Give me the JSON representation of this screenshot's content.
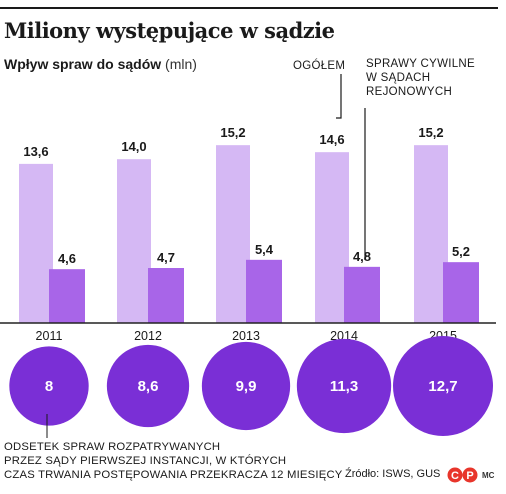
{
  "title": "Miliony występujące w sądzie",
  "subtitle": {
    "bold": "Wpływ spraw do sądów",
    "unit": "(mln)"
  },
  "legend": {
    "total": "OGÓŁEM",
    "civil": [
      "SPRAWY CYWILNE",
      "W SĄDACH",
      "REJONOWYCH"
    ]
  },
  "footnote": [
    "ODSETEK SPRAW ROZPATRYWANYCH",
    "PRZEZ SĄDY PIERWSZEJ INSTANCJI, W KTÓRYCH",
    "CZAS TRWANIA POSTĘPOWANIA PRZEKRACZA 12 MIESIĘCY"
  ],
  "source": "Źródło: ISWS, GUS",
  "logo_text": "MC",
  "colors": {
    "total_bar": "#d5b8f4",
    "civil_bar": "#a865e8",
    "circle": "#7a2fd6",
    "axis": "#222222",
    "logo_red": "#e8352b"
  },
  "chart_data": [
    {
      "type": "bar",
      "categories": [
        "2011",
        "2012",
        "2013",
        "2014",
        "2015"
      ],
      "series": [
        {
          "name": "OGÓŁEM",
          "values": [
            13.6,
            14.0,
            15.2,
            14.6,
            15.2
          ],
          "labels": [
            "13,6",
            "14,0",
            "15,2",
            "14,6",
            "15,2"
          ]
        },
        {
          "name": "SPRAWY CYWILNE W SĄDACH REJONOWYCH",
          "values": [
            4.6,
            4.7,
            5.4,
            4.8,
            5.2
          ],
          "labels": [
            "4,6",
            "4,7",
            "5,4",
            "4,8",
            "5,2"
          ]
        }
      ]
    },
    {
      "type": "bubble",
      "categories": [
        "2011",
        "2012",
        "2013",
        "2014",
        "2015"
      ],
      "values": [
        8,
        8.6,
        9.9,
        11.3,
        12.7
      ],
      "labels": [
        "8",
        "8,6",
        "9,9",
        "11,3",
        "12,7"
      ]
    }
  ]
}
